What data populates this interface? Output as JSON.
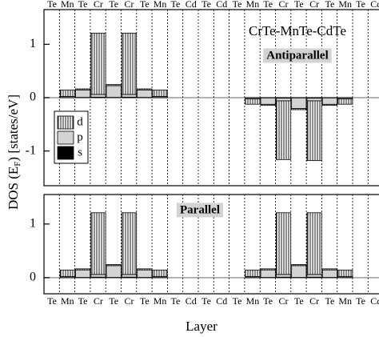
{
  "chart_data": [
    {
      "type": "bar",
      "categories": [
        "Te",
        "Mn",
        "Te",
        "Cr",
        "Te",
        "Cr",
        "Te",
        "Mn",
        "Te",
        "Cd",
        "Te",
        "Cd",
        "Te",
        "Mn",
        "Te",
        "Cr",
        "Te",
        "Cr",
        "Te",
        "Mn",
        "Te",
        "Cd"
      ],
      "series": [
        {
          "name": "d",
          "color": "#ffffff",
          "hatch": "vertical",
          "values": [
            0,
            0.12,
            0.02,
            1.15,
            0.02,
            1.15,
            0.02,
            0.12,
            0,
            0,
            0,
            0,
            0,
            -0.1,
            -0.02,
            -1.1,
            -0.02,
            -1.12,
            -0.02,
            -0.1,
            0,
            0
          ]
        },
        {
          "name": "p",
          "color": "#d3d3d3",
          "values": [
            0,
            0.02,
            0.14,
            0.05,
            0.22,
            0.05,
            0.14,
            0.02,
            0,
            0,
            0,
            0,
            0,
            -0.02,
            -0.12,
            -0.05,
            -0.2,
            -0.05,
            -0.12,
            -0.02,
            0,
            0
          ]
        },
        {
          "name": "s",
          "color": "#000000",
          "values": [
            0,
            0.003,
            0.005,
            0.01,
            0.005,
            0.01,
            0.005,
            0.003,
            0,
            0,
            0,
            0,
            0,
            -0.003,
            -0.005,
            -0.01,
            -0.005,
            -0.01,
            -0.005,
            -0.003,
            0,
            0
          ]
        }
      ],
      "ylim": [
        -1.65,
        1.65
      ],
      "yticks": [
        -1,
        0,
        1
      ],
      "annotations": [
        "CrTe-MnTe-CdTe",
        "Antiparallel"
      ],
      "ylabel": {
        "main": "DOS (E",
        "sub": "F",
        "rest": ") [states/eV]"
      },
      "legend": "left"
    },
    {
      "type": "bar",
      "categories": [
        "Te",
        "Mn",
        "Te",
        "Cr",
        "Te",
        "Cr",
        "Te",
        "Mn",
        "Te",
        "Cd",
        "Te",
        "Cd",
        "Te",
        "Mn",
        "Te",
        "Cr",
        "Te",
        "Cr",
        "Te",
        "Mn",
        "Te",
        "Cd"
      ],
      "series": [
        {
          "name": "d",
          "color": "#ffffff",
          "hatch": "vertical",
          "values": [
            0,
            0.12,
            0.02,
            1.15,
            0.02,
            1.15,
            0.02,
            0.12,
            0,
            0,
            0,
            0,
            0,
            0.12,
            0.02,
            1.15,
            0.02,
            1.15,
            0.02,
            0.12,
            0,
            0
          ]
        },
        {
          "name": "p",
          "color": "#d3d3d3",
          "values": [
            0,
            0.02,
            0.14,
            0.05,
            0.22,
            0.05,
            0.14,
            0.02,
            0,
            0,
            0,
            0,
            0,
            0.02,
            0.14,
            0.05,
            0.22,
            0.05,
            0.14,
            0.02,
            0,
            0
          ]
        },
        {
          "name": "s",
          "color": "#000000",
          "values": [
            0,
            0.003,
            0.005,
            0.01,
            0.005,
            0.01,
            0.005,
            0.003,
            0,
            0,
            0,
            0,
            0,
            0.003,
            0.005,
            0.01,
            0.005,
            0.01,
            0.005,
            0.003,
            0,
            0
          ]
        }
      ],
      "ylim": [
        -0.3,
        1.55
      ],
      "yticks": [
        0,
        1
      ],
      "annotations": [
        "Parallel"
      ],
      "xlabel": "Layer"
    }
  ]
}
